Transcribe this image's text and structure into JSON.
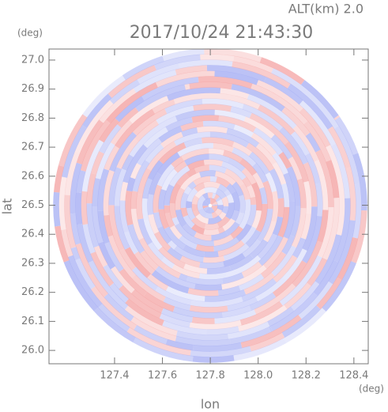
{
  "chart_data": {
    "type": "radar-ppi",
    "title": "2017/10/24 21:43:30",
    "altitude_label": "ALT(km)  2.0",
    "xlabel": "lon",
    "ylabel": "lat",
    "xunit": "(deg)",
    "yunit": "(deg)",
    "xlim": [
      127.126,
      128.46
    ],
    "ylim": [
      25.954,
      27.038
    ],
    "xticks": [
      127.4,
      127.6,
      127.8,
      {
        "value": 128.0,
        "label": "128.0"
      },
      128.2,
      128.4
    ],
    "yticks": [
      {
        "value": 26.0,
        "label": "26.0"
      },
      26.1,
      26.2,
      26.3,
      26.4,
      26.5,
      26.6,
      26.7,
      26.8,
      26.9,
      {
        "value": 27.0,
        "label": "27.0"
      }
    ],
    "colors": [
      "#f4a6a6",
      "#aab2f4"
    ]
  }
}
